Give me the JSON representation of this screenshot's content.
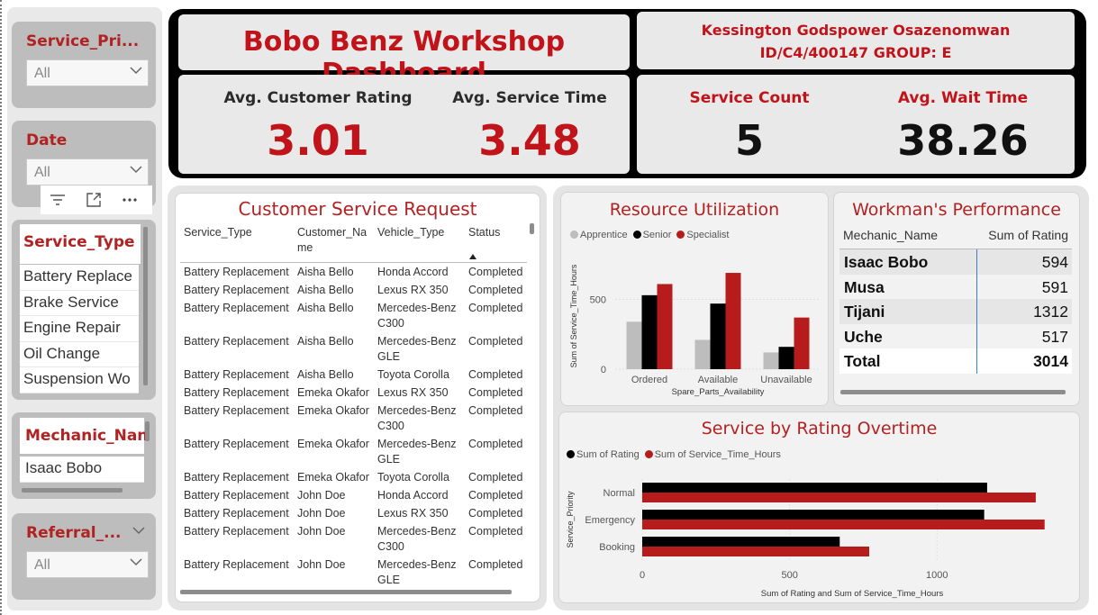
{
  "slicers": {
    "service_priority": {
      "title": "Service_Pri...",
      "value": "All"
    },
    "date": {
      "title": "Date",
      "value": "All"
    },
    "service_type": {
      "title": "Service_Type",
      "items": [
        "Battery Replace",
        "Brake Service",
        "Engine Repair",
        "Oil Change",
        "Suspension Wo"
      ]
    },
    "mechanic": {
      "title": "Mechanic_Nan",
      "items": [
        "Isaac Bobo"
      ]
    },
    "referral": {
      "title": "Referral_...",
      "value": "All"
    }
  },
  "toolbar": {
    "icons": [
      "filter-icon",
      "focus-mode-icon",
      "more-options-icon"
    ]
  },
  "header": {
    "title": "Bobo Benz Workshop Dashboard",
    "author_line1": "Kessington Godspower Osazenomwan",
    "author_line2": "ID/C4/400147 GROUP: E"
  },
  "kpis": {
    "avg_rating": {
      "label": "Avg. Customer Rating",
      "value": "3.01"
    },
    "avg_service_time": {
      "label": "Avg. Service Time",
      "value": "3.48"
    },
    "service_count": {
      "label": "Service Count",
      "value": "5"
    },
    "avg_wait_time": {
      "label": "Avg. Wait Time",
      "value": "38.26"
    }
  },
  "requests": {
    "title": "Customer Service Request",
    "columns": [
      "Service_Type",
      "Customer_Na me",
      "Vehicle_Type",
      "Status"
    ],
    "rows": [
      [
        "Battery Replacement",
        "Aisha Bello",
        "Honda Accord",
        "Completed"
      ],
      [
        "Battery Replacement",
        "Aisha Bello",
        "Lexus RX 350",
        "Completed"
      ],
      [
        "Battery Replacement",
        "Aisha Bello",
        "Mercedes-Benz C300",
        "Completed"
      ],
      [
        "Battery Replacement",
        "Aisha Bello",
        "Mercedes-Benz GLE",
        "Completed"
      ],
      [
        "Battery Replacement",
        "Aisha Bello",
        "Toyota Corolla",
        "Completed"
      ],
      [
        "Battery Replacement",
        "Emeka Okafor",
        "Lexus RX 350",
        "Completed"
      ],
      [
        "Battery Replacement",
        "Emeka Okafor",
        "Mercedes-Benz C300",
        "Completed"
      ],
      [
        "Battery Replacement",
        "Emeka Okafor",
        "Mercedes-Benz GLE",
        "Completed"
      ],
      [
        "Battery Replacement",
        "Emeka Okafor",
        "Toyota Corolla",
        "Completed"
      ],
      [
        "Battery Replacement",
        "John Doe",
        "Honda Accord",
        "Completed"
      ],
      [
        "Battery Replacement",
        "John Doe",
        "Lexus RX 350",
        "Completed"
      ],
      [
        "Battery Replacement",
        "John Doe",
        "Mercedes-Benz C300",
        "Completed"
      ],
      [
        "Battery Replacement",
        "John Doe",
        "Mercedes-Benz GLE",
        "Completed"
      ]
    ]
  },
  "performance": {
    "title": "Workman's Performance",
    "columns": [
      "Mechanic_Name",
      "Sum of Rating"
    ],
    "rows": [
      [
        "Isaac Bobo",
        "594"
      ],
      [
        "Musa",
        "591"
      ],
      [
        "Tijani",
        "1312"
      ],
      [
        "Uche",
        "517"
      ]
    ],
    "total": [
      "Total",
      "3014"
    ]
  },
  "colors": {
    "accent_red": "#c0141a",
    "apprentice": "#bdbdbd",
    "senior": "#000000",
    "specialist": "#b71c1c"
  },
  "chart_data": [
    {
      "type": "bar",
      "title": "Resource Utilization",
      "categories": [
        "Ordered",
        "Available",
        "Unavailable"
      ],
      "series": [
        {
          "name": "Apprentice",
          "values": [
            340,
            210,
            120
          ]
        },
        {
          "name": "Senior",
          "values": [
            530,
            470,
            160
          ]
        },
        {
          "name": "Specialist",
          "values": [
            610,
            690,
            370
          ]
        }
      ],
      "xlabel": "Spare_Parts_Availability",
      "ylabel": "Sum of Service_Time_Hours",
      "yticks": [
        "0",
        "500"
      ],
      "ylim": [
        0,
        800
      ]
    },
    {
      "type": "bar",
      "orientation": "horizontal",
      "title": "Service by Rating Overtime",
      "categories": [
        "Normal",
        "Emergency",
        "Booking"
      ],
      "series": [
        {
          "name": "Sum of Rating",
          "values": [
            1170,
            1160,
            670
          ]
        },
        {
          "name": "Sum of Service_Time_Hours",
          "values": [
            1335,
            1365,
            770
          ]
        }
      ],
      "xlabel": "Sum of Rating and Sum of Service_Time_Hours",
      "ylabel": "Service_Priority",
      "xticks": [
        "0",
        "500",
        "1000"
      ],
      "xlim": [
        0,
        1430
      ]
    }
  ]
}
